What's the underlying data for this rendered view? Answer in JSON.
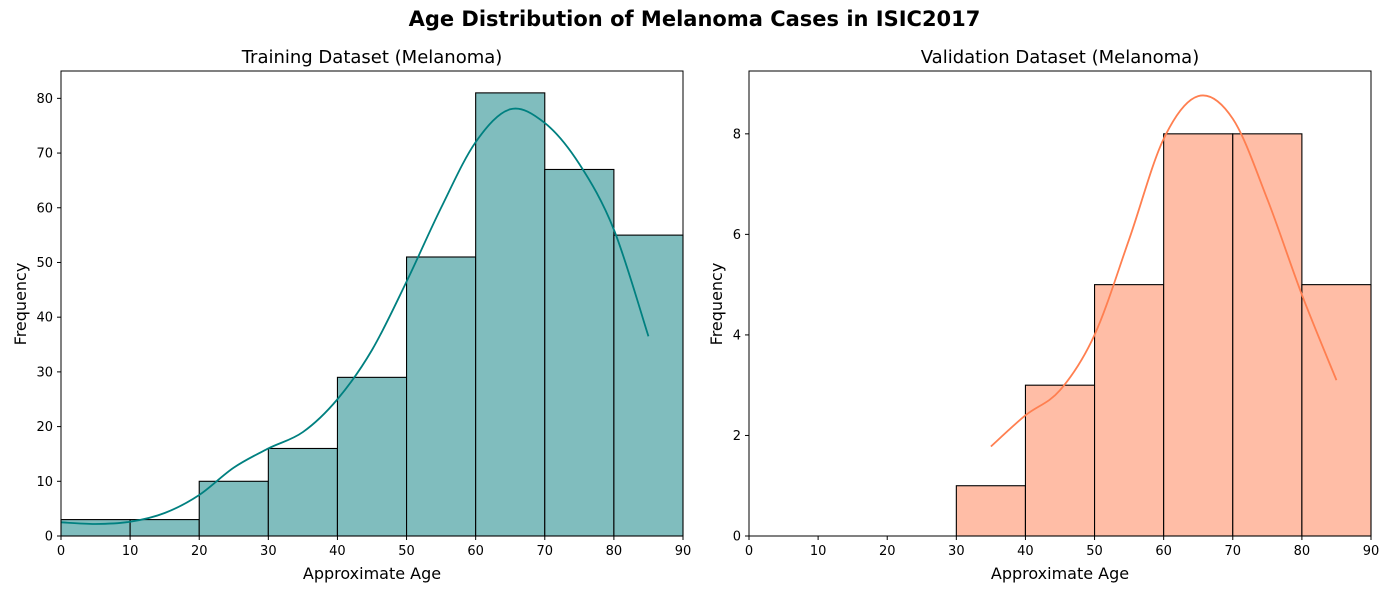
{
  "figure": {
    "suptitle": "Age Distribution of Melanoma Cases in ISIC2017"
  },
  "chart_data": [
    {
      "type": "bar",
      "title": "Training Dataset (Melanoma)",
      "xlabel": "Approximate Age",
      "ylabel": "Frequency",
      "bins": [
        [
          0,
          10
        ],
        [
          10,
          20
        ],
        [
          20,
          30
        ],
        [
          30,
          40
        ],
        [
          40,
          50
        ],
        [
          50,
          60
        ],
        [
          60,
          70
        ],
        [
          70,
          80
        ],
        [
          80,
          90
        ]
      ],
      "values": [
        3,
        3,
        10,
        16,
        29,
        51,
        81,
        67,
        55
      ],
      "xlim": [
        0,
        90
      ],
      "ylim": [
        0,
        85
      ],
      "xticks": [
        0,
        10,
        20,
        30,
        40,
        50,
        60,
        70,
        80,
        90
      ],
      "yticks": [
        0,
        10,
        20,
        30,
        40,
        50,
        60,
        70,
        80
      ],
      "bar_color": "#80bdbe",
      "edge_color": "#000000",
      "kde_color": "#008080",
      "kde": [
        [
          0,
          2.5
        ],
        [
          5,
          2.2
        ],
        [
          10,
          2.6
        ],
        [
          15,
          4.2
        ],
        [
          20,
          7.5
        ],
        [
          25,
          12.5
        ],
        [
          30,
          16
        ],
        [
          35,
          19
        ],
        [
          40,
          25
        ],
        [
          45,
          34
        ],
        [
          50,
          46.5
        ],
        [
          55,
          60
        ],
        [
          60,
          72
        ],
        [
          65,
          78
        ],
        [
          70,
          75.5
        ],
        [
          75,
          68
        ],
        [
          80,
          56
        ],
        [
          85,
          36.5
        ]
      ]
    },
    {
      "type": "bar",
      "title": "Validation Dataset (Melanoma)",
      "xlabel": "Approximate Age",
      "ylabel": "Frequency",
      "bins": [
        [
          30,
          40
        ],
        [
          40,
          50
        ],
        [
          50,
          60
        ],
        [
          60,
          70
        ],
        [
          70,
          80
        ],
        [
          80,
          90
        ]
      ],
      "values": [
        1,
        3,
        5,
        8,
        8,
        5
      ],
      "xlim": [
        0,
        90
      ],
      "ylim": [
        0,
        9.25
      ],
      "xticks": [
        0,
        10,
        20,
        30,
        40,
        50,
        60,
        70,
        80,
        90
      ],
      "yticks": [
        0,
        2,
        4,
        6,
        8
      ],
      "bar_color": "#ffbda6",
      "edge_color": "#000000",
      "kde_color": "#ff7f50",
      "kde": [
        [
          35,
          1.78
        ],
        [
          40,
          2.4
        ],
        [
          45,
          2.9
        ],
        [
          50,
          4.0
        ],
        [
          55,
          5.9
        ],
        [
          60,
          7.9
        ],
        [
          65,
          8.75
        ],
        [
          70,
          8.3
        ],
        [
          75,
          6.7
        ],
        [
          80,
          4.8
        ],
        [
          85,
          3.1
        ]
      ]
    }
  ]
}
